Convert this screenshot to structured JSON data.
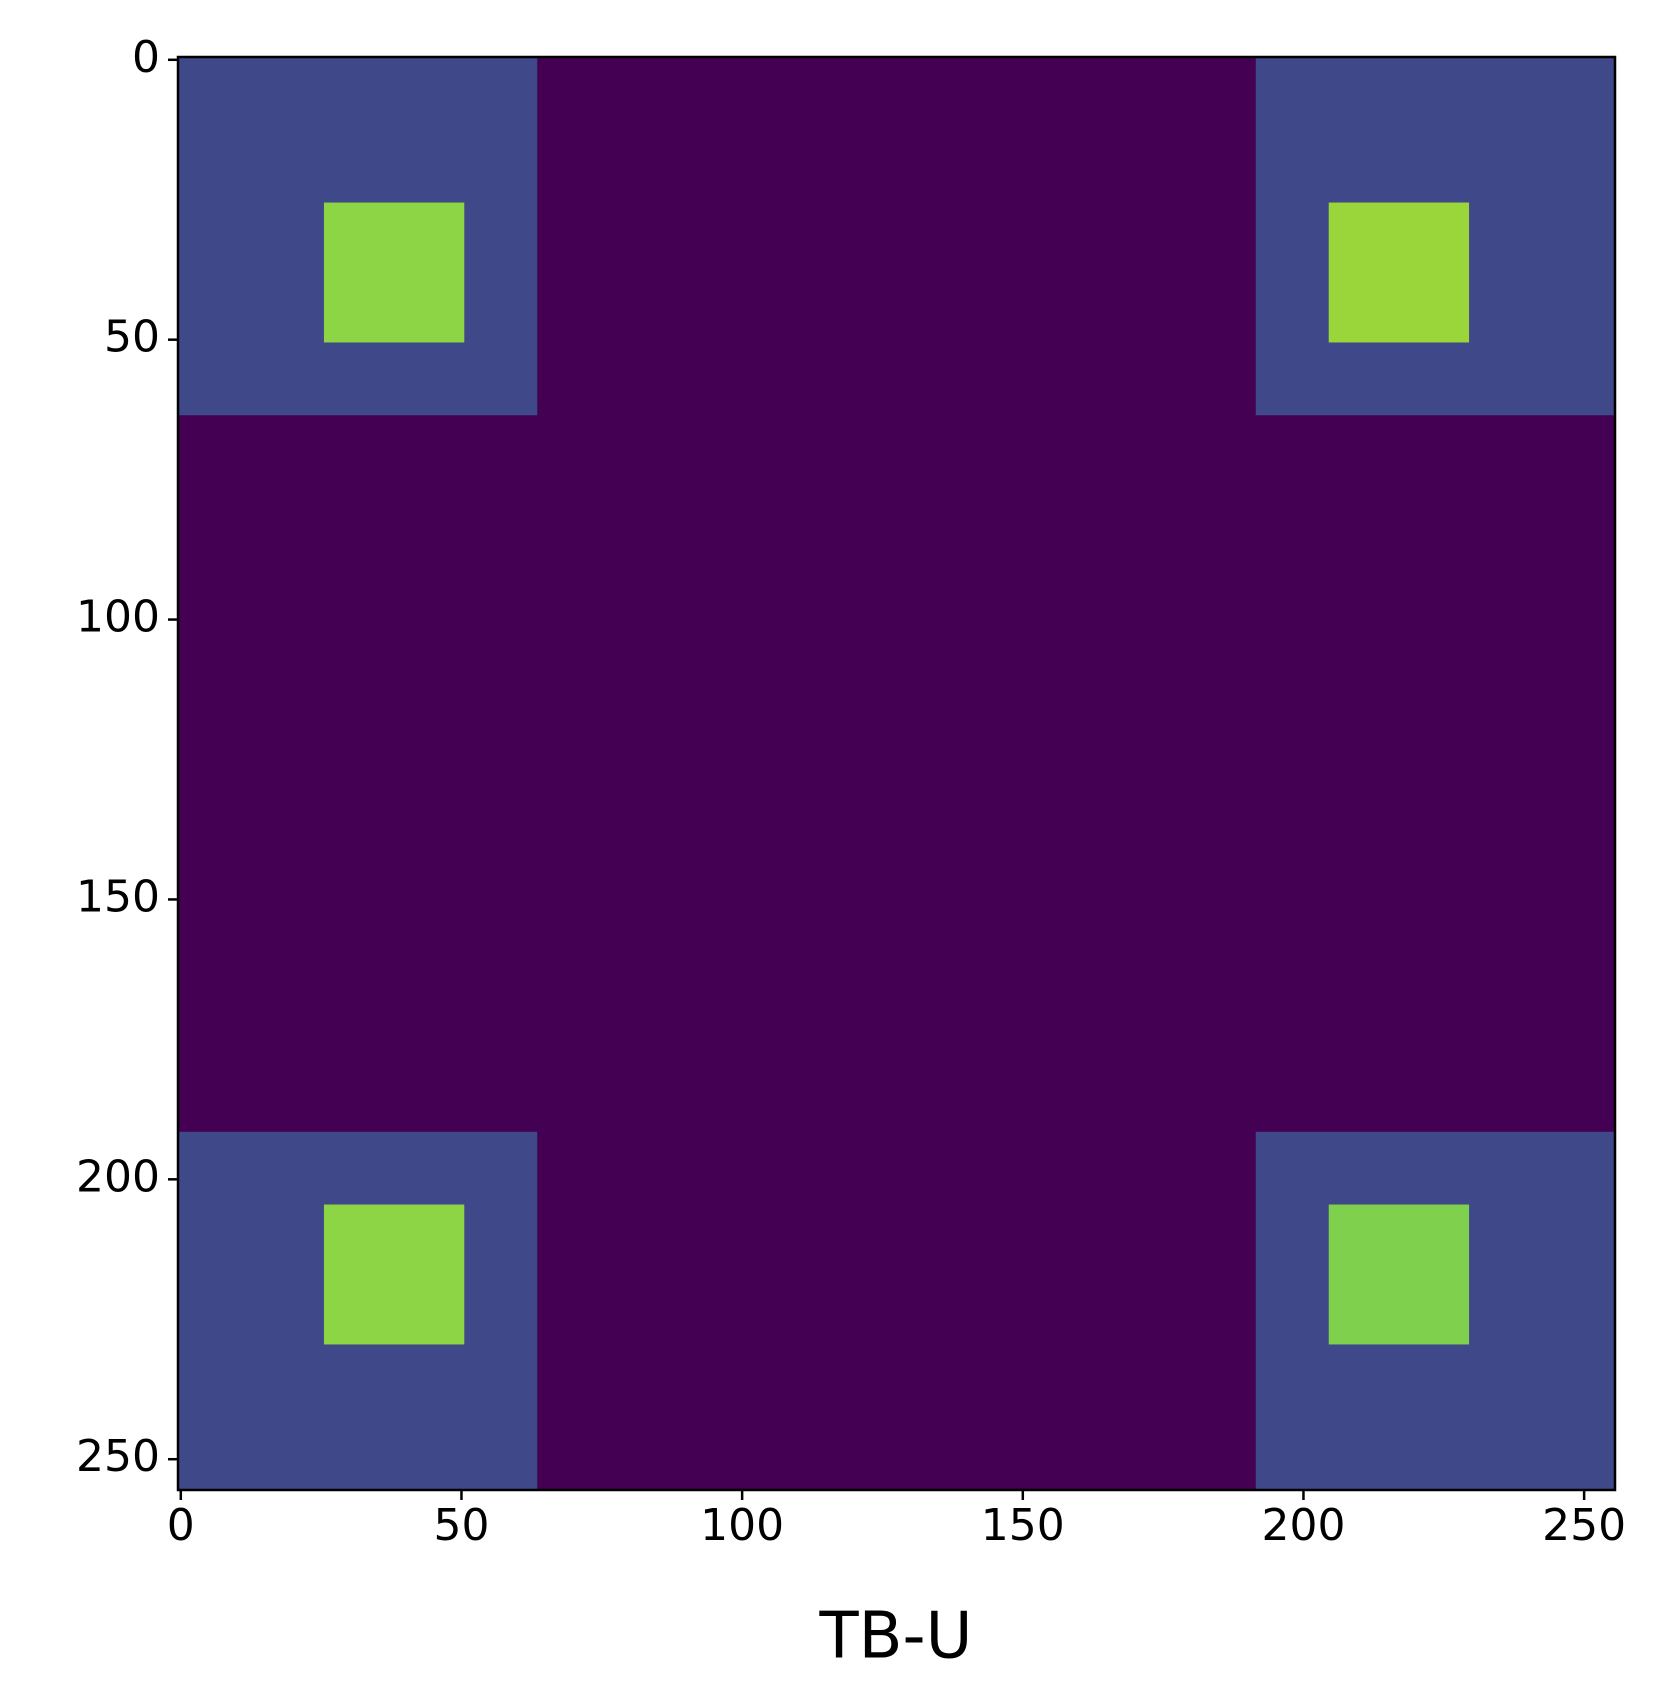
{
  "chart_data": {
    "type": "heatmap",
    "xlabel": "TB-U",
    "background": "#440154",
    "regions": [
      {
        "x": [
          0,
          64
        ],
        "y": [
          0,
          64
        ],
        "color": "#3f4889"
      },
      {
        "x": [
          192,
          256
        ],
        "y": [
          0,
          64
        ],
        "color": "#3f4889"
      },
      {
        "x": [
          0,
          64
        ],
        "y": [
          192,
          256
        ],
        "color": "#3f4889"
      },
      {
        "x": [
          192,
          256
        ],
        "y": [
          192,
          256
        ],
        "color": "#3f4889"
      },
      {
        "x": [
          26,
          51
        ],
        "y": [
          26,
          51
        ],
        "color": "#8dd544"
      },
      {
        "x": [
          205,
          230
        ],
        "y": [
          26,
          51
        ],
        "color": "#9ad63a"
      },
      {
        "x": [
          26,
          51
        ],
        "y": [
          205,
          230
        ],
        "color": "#8dd544"
      },
      {
        "x": [
          205,
          230
        ],
        "y": [
          205,
          230
        ],
        "color": "#7fd04c"
      }
    ],
    "xlim": [
      -0.5,
      255.5
    ],
    "ylim": [
      255.5,
      -0.5
    ],
    "xticks": [
      0,
      50,
      100,
      150,
      200,
      250
    ],
    "yticks": [
      0,
      50,
      100,
      150,
      200,
      250
    ]
  }
}
